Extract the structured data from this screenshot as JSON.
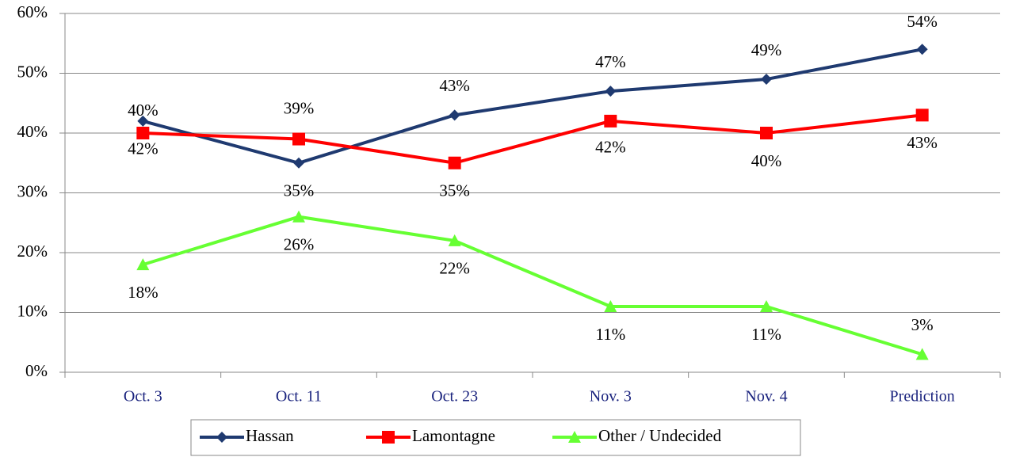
{
  "chart_data": {
    "type": "line",
    "categories": [
      "Oct. 3",
      "Oct. 11",
      "Oct. 23",
      "Nov. 3",
      "Nov. 4",
      "Prediction"
    ],
    "series": [
      {
        "name": "Hassan",
        "color": "#1f3a70",
        "marker": "diamond",
        "values": [
          42,
          35,
          43,
          47,
          49,
          54
        ],
        "value_labels": [
          "42%",
          "35%",
          "43%",
          "47%",
          "49%",
          "54%"
        ]
      },
      {
        "name": "Lamontagne",
        "color": "#ff0000",
        "marker": "square",
        "values": [
          40,
          39,
          35,
          42,
          40,
          43
        ],
        "value_labels": [
          "40%",
          "39%",
          "35%",
          "42%",
          "40%",
          "43%"
        ]
      },
      {
        "name": "Other / Undecided",
        "color": "#66ff33",
        "marker": "triangle",
        "values": [
          18,
          26,
          22,
          11,
          11,
          3
        ],
        "value_labels": [
          "18%",
          "26%",
          "22%",
          "11%",
          "11%",
          "3%"
        ]
      }
    ],
    "ylim": [
      0,
      60
    ],
    "yticks": [
      {
        "value": 0,
        "label": "0%"
      },
      {
        "value": 10,
        "label": "10%"
      },
      {
        "value": 20,
        "label": "20%"
      },
      {
        "value": 30,
        "label": "30%"
      },
      {
        "value": 40,
        "label": "40%"
      },
      {
        "value": 50,
        "label": "50%"
      },
      {
        "value": 60,
        "label": "60%"
      }
    ],
    "grid": true
  }
}
